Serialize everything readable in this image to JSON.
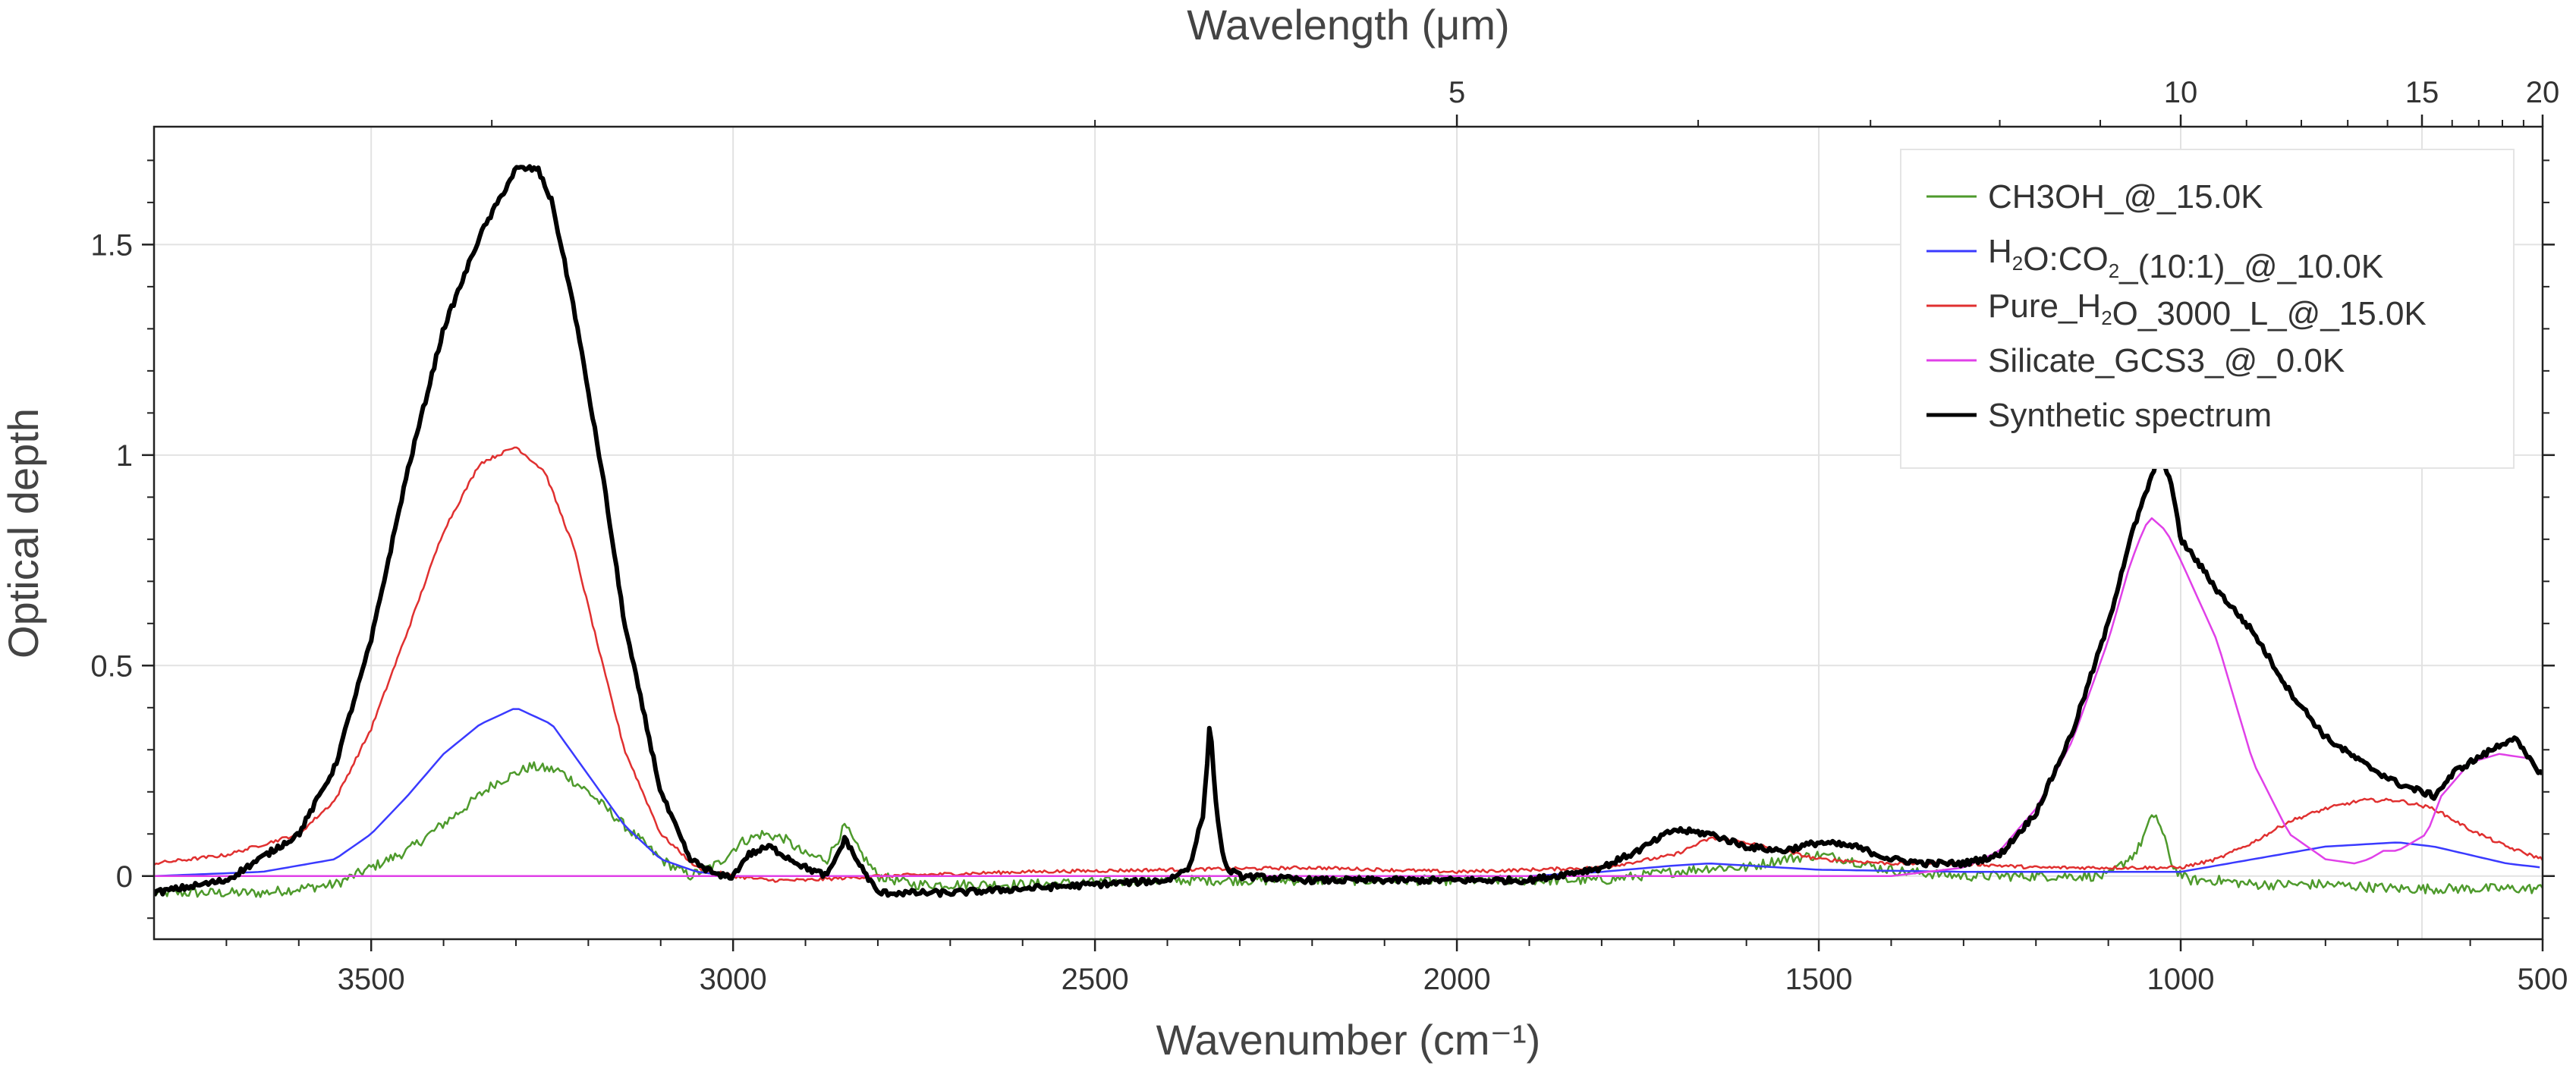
{
  "chart_data": {
    "type": "line",
    "xlabel_bottom": "Wavenumber (cm⁻¹)",
    "xlabel_top": "Wavelength (μm)",
    "ylabel": "Optical depth",
    "xlim": [
      3800,
      500
    ],
    "ylim": [
      -0.15,
      1.78
    ],
    "grid": true,
    "legend_position": "top-right",
    "x_ticks_bottom": [
      3500,
      3000,
      2500,
      2000,
      1500,
      1000,
      500
    ],
    "x_tick_labels_bottom": [
      "3500",
      "3000",
      "2500",
      "2000",
      "1500",
      "1000",
      "500"
    ],
    "x_ticks_top_um": [
      5,
      10,
      15,
      20
    ],
    "x_tick_labels_top": [
      "5",
      "10",
      "15",
      "20"
    ],
    "y_ticks": [
      0,
      0.5,
      1,
      1.5
    ],
    "y_tick_labels": [
      "0",
      "0.5",
      "1",
      "1.5"
    ],
    "series": [
      {
        "name": "CH3OH_@_15.0K",
        "legend_parts": [
          {
            "t": "CH3OH_@_15.0K"
          }
        ],
        "color": "#4e9a2c",
        "width": 2.5,
        "noise": 0.012,
        "x": [
          3800,
          3650,
          3550,
          3450,
          3380,
          3330,
          3280,
          3240,
          3200,
          3150,
          3100,
          3060,
          3020,
          2990,
          2960,
          2930,
          2900,
          2870,
          2845,
          2830,
          2800,
          2750,
          2600,
          2400,
          2200,
          2000,
          1800,
          1700,
          1650,
          1600,
          1550,
          1500,
          1460,
          1420,
          1380,
          1300,
          1200,
          1130,
          1100,
          1060,
          1045,
          1035,
          1025,
          1010,
          990,
          950,
          900,
          800,
          700,
          600,
          500
        ],
        "y": [
          -0.04,
          -0.04,
          -0.02,
          0.06,
          0.15,
          0.22,
          0.26,
          0.25,
          0.2,
          0.12,
          0.04,
          0.0,
          0.03,
          0.08,
          0.1,
          0.09,
          0.05,
          0.04,
          0.12,
          0.07,
          0.0,
          -0.02,
          -0.02,
          -0.01,
          -0.01,
          -0.01,
          -0.01,
          0.01,
          0.02,
          0.02,
          0.04,
          0.05,
          0.04,
          0.02,
          0.01,
          0.0,
          0.0,
          0.0,
          0.0,
          0.06,
          0.12,
          0.15,
          0.1,
          0.02,
          -0.01,
          -0.01,
          -0.02,
          -0.02,
          -0.03,
          -0.03,
          -0.03
        ]
      },
      {
        "name": "H₂O:CO₂_(10:1)_@_10.0K",
        "legend_parts": [
          {
            "t": "H"
          },
          {
            "t": "2",
            "sub": true
          },
          {
            "t": "O:CO"
          },
          {
            "t": "2",
            "sub": true
          },
          {
            "t": "_(10:1)_@_10.0K"
          }
        ],
        "color": "#3a3aff",
        "width": 2.5,
        "noise": 0,
        "x": [
          3800,
          3650,
          3550,
          3500,
          3450,
          3400,
          3350,
          3300,
          3250,
          3200,
          3150,
          3100,
          3050,
          3000,
          2900,
          2700,
          2500,
          2300,
          2100,
          1900,
          1800,
          1700,
          1650,
          1600,
          1500,
          1300,
          1100,
          1000,
          900,
          800,
          700,
          650,
          600,
          550,
          500
        ],
        "y": [
          0.0,
          0.01,
          0.04,
          0.1,
          0.19,
          0.29,
          0.36,
          0.4,
          0.36,
          0.24,
          0.12,
          0.04,
          0.01,
          0.0,
          0.0,
          0.0,
          0.0,
          0.0,
          0.0,
          0.0,
          0.01,
          0.025,
          0.03,
          0.025,
          0.015,
          0.01,
          0.01,
          0.01,
          0.04,
          0.07,
          0.08,
          0.07,
          0.05,
          0.03,
          0.02
        ]
      },
      {
        "name": "Pure_H₂O_3000_L_@_15.0K",
        "legend_parts": [
          {
            "t": "Pure_H"
          },
          {
            "t": "2",
            "sub": true
          },
          {
            "t": "O_3000_L_@_15.0K"
          }
        ],
        "color": "#e03030",
        "width": 2.5,
        "noise": 0.004,
        "x": [
          3800,
          3700,
          3600,
          3550,
          3500,
          3450,
          3400,
          3350,
          3300,
          3260,
          3220,
          3180,
          3150,
          3100,
          3050,
          3000,
          2950,
          2900,
          2800,
          2600,
          2400,
          2200,
          2000,
          1800,
          1700,
          1650,
          1600,
          1500,
          1400,
          1300,
          1200,
          1100,
          1000,
          950,
          900,
          850,
          800,
          750,
          700,
          650,
          600,
          550,
          500
        ],
        "y": [
          0.03,
          0.05,
          0.1,
          0.18,
          0.35,
          0.58,
          0.82,
          0.98,
          1.02,
          0.96,
          0.78,
          0.5,
          0.3,
          0.1,
          0.02,
          0.0,
          -0.01,
          -0.01,
          0.0,
          0.01,
          0.015,
          0.02,
          0.01,
          0.02,
          0.05,
          0.09,
          0.08,
          0.04,
          0.03,
          0.03,
          0.02,
          0.02,
          0.02,
          0.04,
          0.08,
          0.13,
          0.16,
          0.18,
          0.18,
          0.16,
          0.11,
          0.07,
          0.04
        ]
      },
      {
        "name": "Silicate_GCS3_@_0.0K",
        "legend_parts": [
          {
            "t": "Silicate_GCS3_@_0.0K"
          }
        ],
        "color": "#e040e8",
        "width": 2.5,
        "noise": 0,
        "x": [
          3800,
          1400,
          1300,
          1250,
          1200,
          1150,
          1100,
          1070,
          1050,
          1040,
          1020,
          1000,
          950,
          900,
          850,
          800,
          760,
          740,
          720,
          700,
          660,
          640,
          620,
          600,
          560,
          520,
          500
        ],
        "y": [
          0.0,
          0.0,
          0.02,
          0.06,
          0.16,
          0.32,
          0.56,
          0.74,
          0.83,
          0.85,
          0.82,
          0.75,
          0.56,
          0.27,
          0.1,
          0.04,
          0.03,
          0.04,
          0.06,
          0.06,
          0.1,
          0.19,
          0.23,
          0.27,
          0.29,
          0.28,
          0.24
        ]
      },
      {
        "name": "Synthetic spectrum",
        "legend_parts": [
          {
            "t": "Synthetic spectrum"
          }
        ],
        "color": "#000000",
        "width": 6,
        "noise": 0.007,
        "x": [
          3800,
          3700,
          3600,
          3550,
          3500,
          3450,
          3400,
          3350,
          3300,
          3270,
          3250,
          3220,
          3180,
          3150,
          3100,
          3060,
          3020,
          3000,
          2980,
          2950,
          2930,
          2900,
          2870,
          2845,
          2830,
          2800,
          2700,
          2600,
          2500,
          2400,
          2370,
          2350,
          2341,
          2332,
          2320,
          2300,
          2200,
          2000,
          1900,
          1800,
          1750,
          1700,
          1650,
          1600,
          1550,
          1500,
          1450,
          1400,
          1350,
          1300,
          1250,
          1200,
          1150,
          1100,
          1070,
          1050,
          1030,
          1015,
          1000,
          970,
          950,
          900,
          850,
          800,
          750,
          700,
          650,
          620,
          600,
          580,
          560,
          540,
          520,
          500
        ],
        "y": [
          -0.04,
          -0.01,
          0.1,
          0.26,
          0.56,
          0.96,
          1.3,
          1.52,
          1.68,
          1.68,
          1.6,
          1.35,
          0.95,
          0.6,
          0.2,
          0.04,
          0.0,
          0.0,
          0.05,
          0.07,
          0.05,
          0.02,
          0.0,
          0.09,
          0.04,
          -0.04,
          -0.04,
          -0.03,
          -0.02,
          -0.01,
          0.02,
          0.15,
          0.37,
          0.15,
          0.02,
          0.0,
          -0.01,
          -0.01,
          -0.01,
          0.02,
          0.06,
          0.11,
          0.1,
          0.07,
          0.06,
          0.08,
          0.07,
          0.04,
          0.03,
          0.03,
          0.05,
          0.15,
          0.34,
          0.6,
          0.8,
          0.9,
          1.0,
          0.95,
          0.8,
          0.73,
          0.68,
          0.58,
          0.44,
          0.33,
          0.27,
          0.22,
          0.19,
          0.25,
          0.27,
          0.29,
          0.31,
          0.33,
          0.28,
          0.24
        ]
      }
    ]
  }
}
